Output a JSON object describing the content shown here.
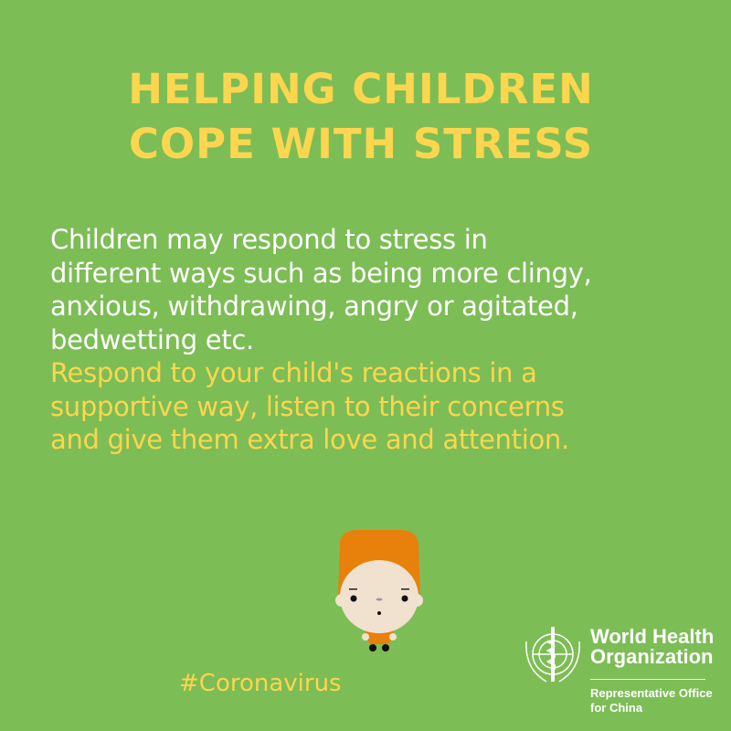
{
  "title": {
    "lines": [
      "HELPING CHILDREN",
      "COPE WITH STRESS"
    ]
  },
  "body": {
    "white_lines": [
      "Children may respond to stress in",
      "different ways such as being more clingy,",
      "anxious, withdrawing, angry or agitated,",
      "bedwetting etc."
    ],
    "yellow_lines": [
      "Respond to your child's reactions in a",
      "supportive way, listen to their concerns",
      "and give them extra love and attention."
    ]
  },
  "hashtag": "#Coronavirus",
  "logo": {
    "name_lines": [
      "World Health",
      "Organization"
    ],
    "sub_lines": [
      "Representative Office",
      "for China"
    ],
    "icon": "who-emblem-icon"
  },
  "illustration": {
    "icon": "child-icon"
  },
  "colors": {
    "background": "#7dbd55",
    "accent": "#fdd64f",
    "hair": "#e8800c",
    "skin": "#f0e2cf"
  }
}
